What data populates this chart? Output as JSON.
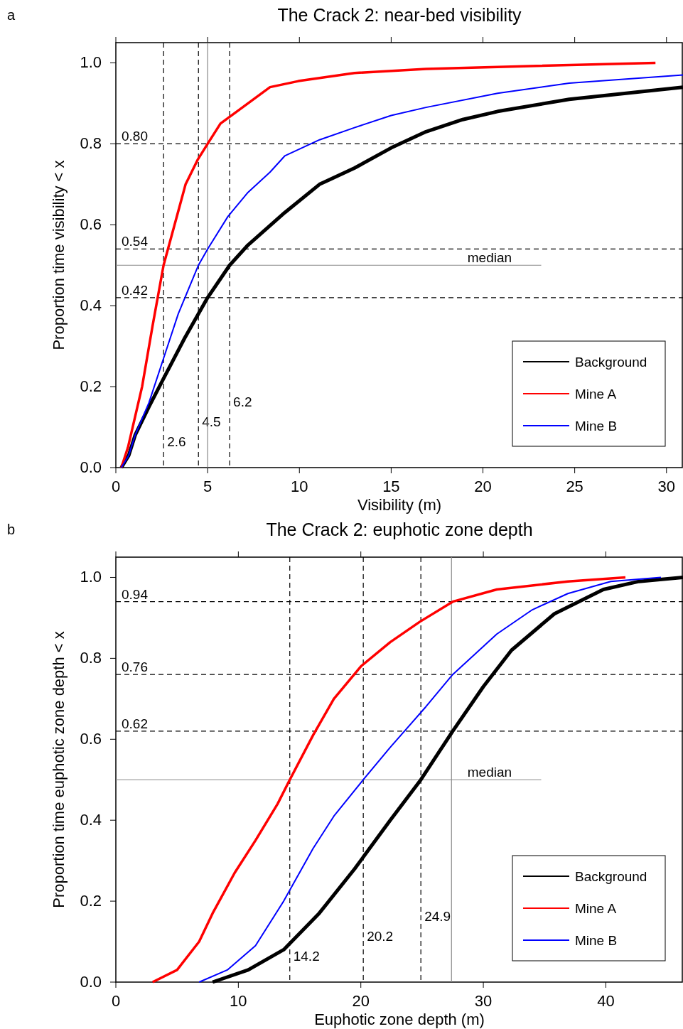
{
  "chart_data": [
    {
      "type": "line",
      "title": "The Crack 2: near-bed visibility",
      "xlabel": "Visibility (m)",
      "ylabel": "Proportion time visibility < x",
      "annotations": [
        "a"
      ],
      "legend": "bottom right",
      "marker": "none",
      "xlim": [
        0,
        30.9
      ],
      "ylim": [
        0,
        1.05
      ],
      "xticks": [
        0,
        5,
        10,
        15,
        20,
        25,
        30
      ],
      "yticks": [
        {
          "value": 0,
          "label": "0.0"
        },
        {
          "value": 0.2,
          "label": "0.2"
        },
        {
          "value": 0.4,
          "label": "0.4"
        },
        {
          "value": 0.6,
          "label": "0.6"
        },
        {
          "value": 0.8,
          "label": "0.8"
        },
        {
          "value": 1,
          "label": "1.0"
        }
      ],
      "series": [
        {
          "name": "Background",
          "color": "#000000",
          "x": [
            0.3,
            0.7,
            1.05,
            1.8,
            2.6,
            3.75,
            5,
            6.2,
            7.2,
            9.2,
            11.1,
            13,
            15,
            16.9,
            18.9,
            20.8,
            24.7,
            30.9
          ],
          "values": [
            0,
            0.03,
            0.08,
            0.15,
            0.22,
            0.32,
            0.42,
            0.5,
            0.55,
            0.63,
            0.7,
            0.74,
            0.79,
            0.83,
            0.86,
            0.88,
            0.91,
            0.94
          ]
        },
        {
          "name": "Mine A",
          "color": "#ff0000",
          "x": [
            0.3,
            0.66,
            1.43,
            2,
            2.6,
            3.2,
            3.8,
            4.45,
            5,
            5.7,
            6.9,
            8.4,
            9.95,
            13,
            16.9,
            20.8,
            29.4
          ],
          "values": [
            0,
            0.05,
            0.2,
            0.35,
            0.5,
            0.6,
            0.7,
            0.76,
            0.8,
            0.85,
            0.89,
            0.94,
            0.955,
            0.975,
            0.985,
            0.99,
            1.0
          ]
        },
        {
          "name": "Mine B",
          "color": "#0000ff",
          "x": [
            0.3,
            0.7,
            1.05,
            1.8,
            2.6,
            3.4,
            4.5,
            5,
            6.1,
            7.2,
            8.4,
            9.2,
            11.1,
            13,
            15,
            16.9,
            20.8,
            24.7,
            30.9
          ],
          "values": [
            0,
            0.03,
            0.08,
            0.16,
            0.27,
            0.38,
            0.5,
            0.54,
            0.62,
            0.68,
            0.73,
            0.77,
            0.81,
            0.84,
            0.87,
            0.89,
            0.925,
            0.95,
            0.97
          ]
        }
      ],
      "ref_lines": [
        {
          "axis": "y",
          "value": 0.8,
          "label": "0.80",
          "line_style": "dashed",
          "color": "#000000"
        },
        {
          "axis": "y",
          "value": 0.54,
          "label": "0.54",
          "line_style": "dashed",
          "color": "#000000"
        },
        {
          "axis": "y",
          "value": 0.42,
          "label": "0.42",
          "line_style": "dashed",
          "color": "#000000"
        },
        {
          "axis": "y",
          "value": 0.5,
          "label": "median",
          "line_style": "solid",
          "color": "#888888"
        },
        {
          "axis": "x",
          "value": 2.6,
          "label": "2.6",
          "line_style": "dashed",
          "color": "#000000"
        },
        {
          "axis": "x",
          "value": 4.5,
          "label": "4.5",
          "line_style": "dashed",
          "color": "#000000"
        },
        {
          "axis": "x",
          "value": 6.2,
          "label": "6.2",
          "line_style": "dashed",
          "color": "#000000"
        },
        {
          "axis": "x",
          "value": 5,
          "label": null,
          "line_style": "solid",
          "color": "#888888"
        }
      ]
    },
    {
      "type": "line",
      "title": "The Crack 2: euphotic zone depth",
      "xlabel": "Euphotic zone depth (m)",
      "ylabel": "Proportion time euphotic zone depth < x",
      "annotations": [
        "b"
      ],
      "legend": "bottom right",
      "marker": "none",
      "xlim": [
        0,
        46.3
      ],
      "ylim": [
        0,
        1.05
      ],
      "xticks": [
        0,
        10,
        20,
        30,
        40
      ],
      "yticks": [
        {
          "value": 0,
          "label": "0.0"
        },
        {
          "value": 0.2,
          "label": "0.2"
        },
        {
          "value": 0.4,
          "label": "0.4"
        },
        {
          "value": 0.6,
          "label": "0.6"
        },
        {
          "value": 0.8,
          "label": "0.8"
        },
        {
          "value": 1,
          "label": "1.0"
        }
      ],
      "series": [
        {
          "name": "Background",
          "color": "#000000",
          "x": [
            7.9,
            10.8,
            13.7,
            16.6,
            19.5,
            22.4,
            24.9,
            27.5,
            30,
            32.3,
            35.8,
            39.8,
            42.7,
            46.3
          ],
          "values": [
            0,
            0.03,
            0.08,
            0.17,
            0.28,
            0.4,
            0.5,
            0.62,
            0.73,
            0.82,
            0.91,
            0.97,
            0.99,
            1.0
          ]
        },
        {
          "name": "Mine A",
          "color": "#ff0000",
          "x": [
            3,
            5,
            6.8,
            7.9,
            9.7,
            11.4,
            13.2,
            14.2,
            16.1,
            17.8,
            20,
            22.4,
            24.8,
            27.5,
            31.1,
            36.9,
            41.6
          ],
          "values": [
            0,
            0.03,
            0.1,
            0.17,
            0.27,
            0.35,
            0.44,
            0.5,
            0.61,
            0.7,
            0.78,
            0.84,
            0.89,
            0.94,
            0.97,
            0.99,
            1.0
          ]
        },
        {
          "name": "Mine B",
          "color": "#0000ff",
          "x": [
            6.8,
            9.1,
            11.4,
            13.7,
            16.1,
            17.8,
            20.2,
            22.4,
            25.3,
            27.5,
            31.1,
            34,
            36.9,
            40.4,
            44.5
          ],
          "values": [
            0,
            0.03,
            0.09,
            0.2,
            0.33,
            0.41,
            0.5,
            0.58,
            0.68,
            0.76,
            0.86,
            0.92,
            0.96,
            0.99,
            1.0
          ]
        }
      ],
      "ref_lines": [
        {
          "axis": "y",
          "value": 0.94,
          "label": "0.94",
          "line_style": "dashed",
          "color": "#000000"
        },
        {
          "axis": "y",
          "value": 0.76,
          "label": "0.76",
          "line_style": "dashed",
          "color": "#000000"
        },
        {
          "axis": "y",
          "value": 0.62,
          "label": "0.62",
          "line_style": "dashed",
          "color": "#000000"
        },
        {
          "axis": "y",
          "value": 0.5,
          "label": "median",
          "line_style": "solid",
          "color": "#888888"
        },
        {
          "axis": "x",
          "value": 14.2,
          "label": "14.2",
          "line_style": "dashed",
          "color": "#000000"
        },
        {
          "axis": "x",
          "value": 20.2,
          "label": "20.2",
          "line_style": "dashed",
          "color": "#000000"
        },
        {
          "axis": "x",
          "value": 24.9,
          "label": "24.9",
          "line_style": "dashed",
          "color": "#000000"
        },
        {
          "axis": "x",
          "value": 27.4,
          "label": null,
          "line_style": "solid",
          "color": "#888888"
        }
      ]
    }
  ]
}
